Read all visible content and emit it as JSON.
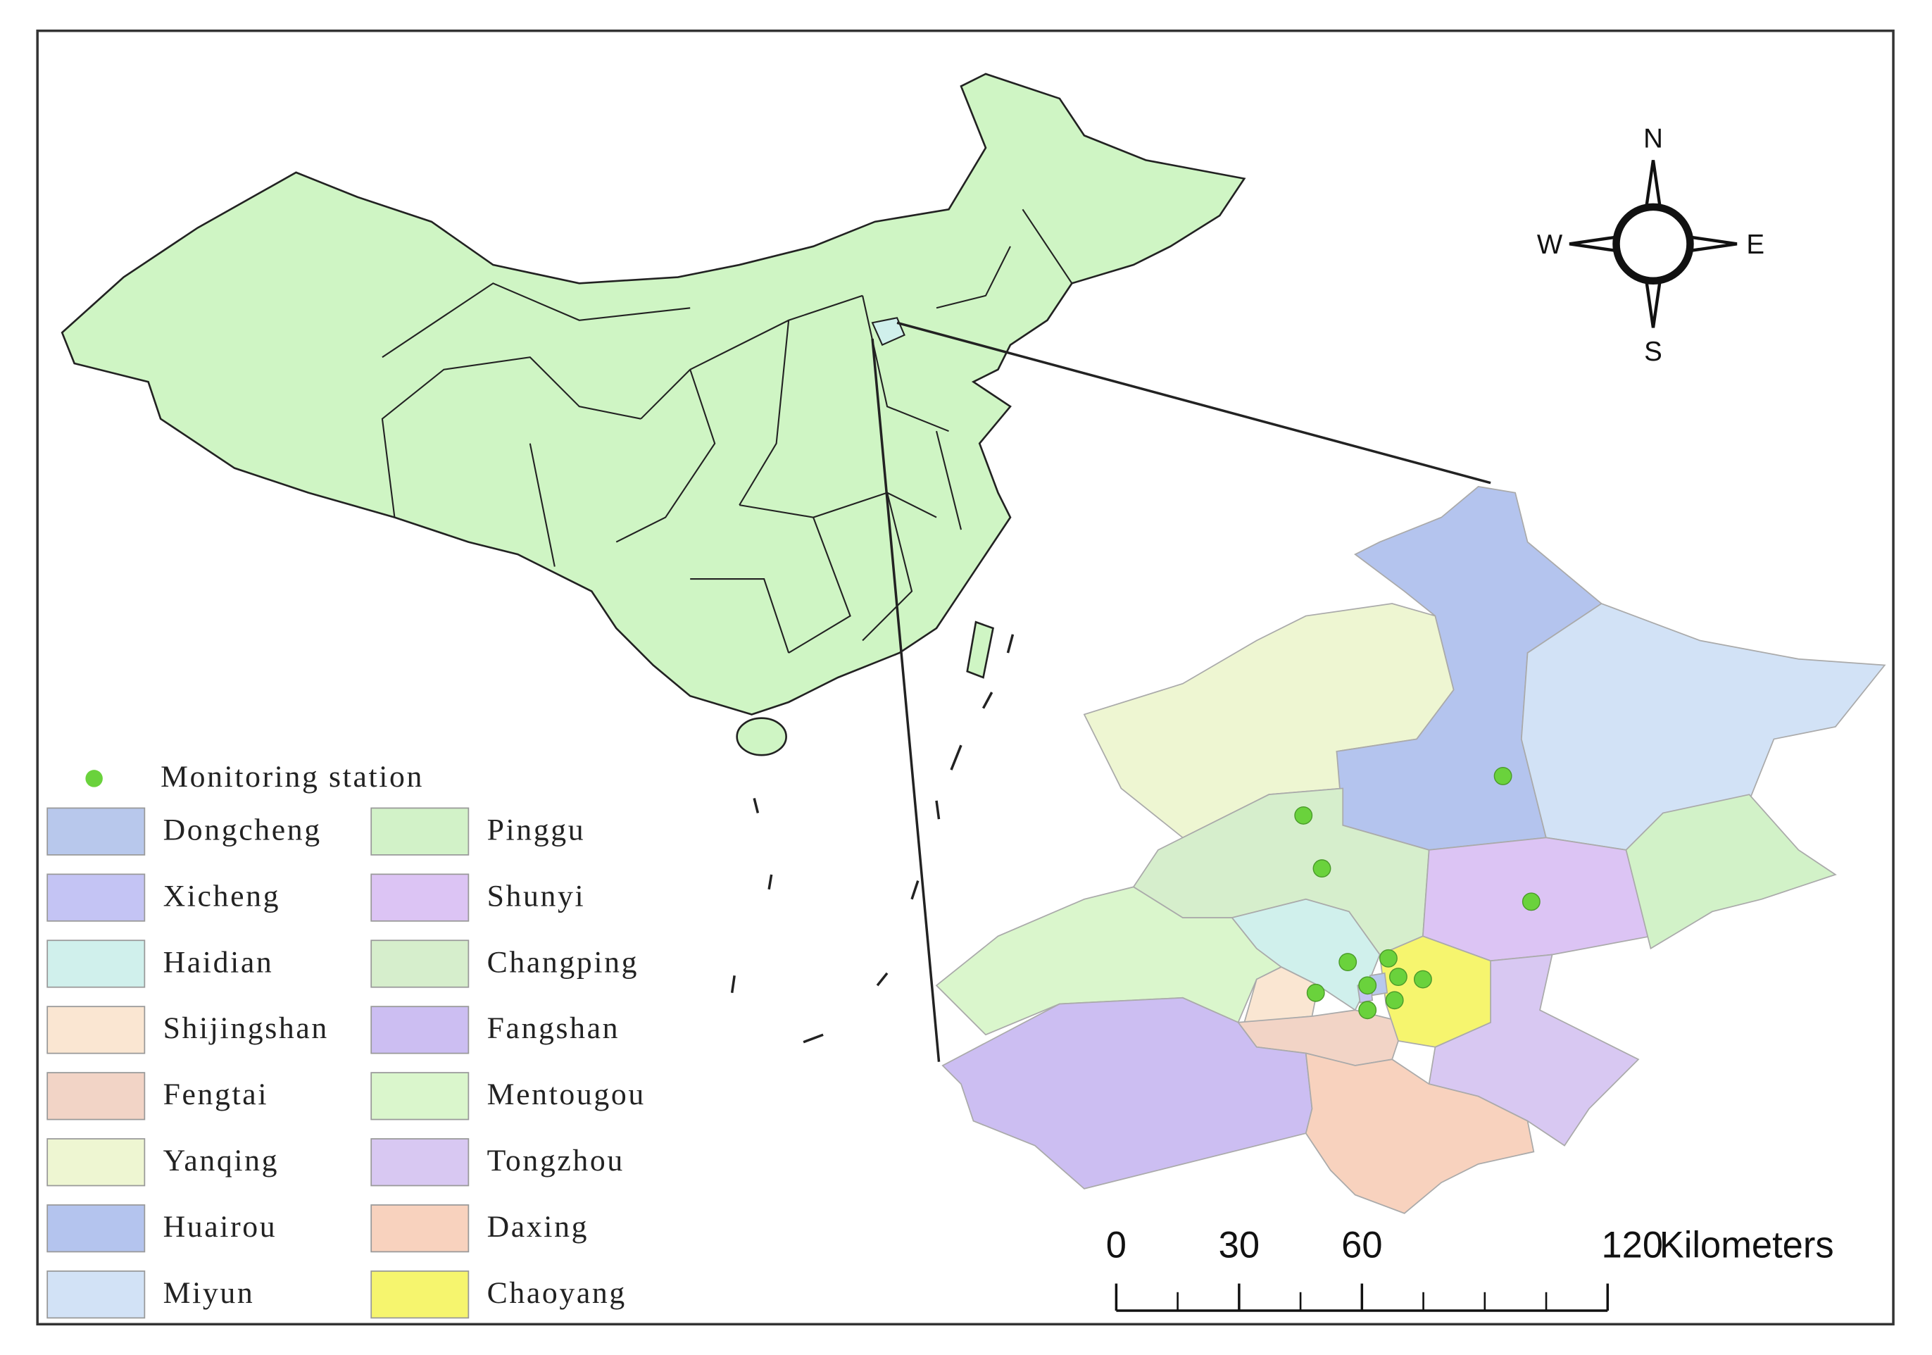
{
  "legend": {
    "marker_label": "Monitoring station",
    "marker_color": "#6ad23c",
    "items": [
      {
        "label": "Dongcheng",
        "color": "#b8c8ec"
      },
      {
        "label": "Xicheng",
        "color": "#c4c4f4"
      },
      {
        "label": "Haidian",
        "color": "#d0f0ec"
      },
      {
        "label": "Shijingshan",
        "color": "#fae6d2"
      },
      {
        "label": "Fengtai",
        "color": "#f2d4c6"
      },
      {
        "label": "Yanqing",
        "color": "#eef6d2"
      },
      {
        "label": "Huairou",
        "color": "#b4c4ee"
      },
      {
        "label": "Miyun",
        "color": "#d2e2f6"
      },
      {
        "label": "Pinggu",
        "color": "#d2f2c8"
      },
      {
        "label": "Shunyi",
        "color": "#dcc4f4"
      },
      {
        "label": "Changping",
        "color": "#d6eecc"
      },
      {
        "label": "Fangshan",
        "color": "#ccbef2"
      },
      {
        "label": "Mentougou",
        "color": "#daf6cc"
      },
      {
        "label": "Tongzhou",
        "color": "#d8c8f2"
      },
      {
        "label": "Daxing",
        "color": "#f8d2be"
      },
      {
        "label": "Chaoyang",
        "color": "#f6f56e"
      }
    ]
  },
  "compass": {
    "n": "N",
    "e": "E",
    "s": "S",
    "w": "W"
  },
  "scale_bar": {
    "ticks": [
      0,
      30,
      60,
      120
    ],
    "unit": "Kilometers"
  }
}
